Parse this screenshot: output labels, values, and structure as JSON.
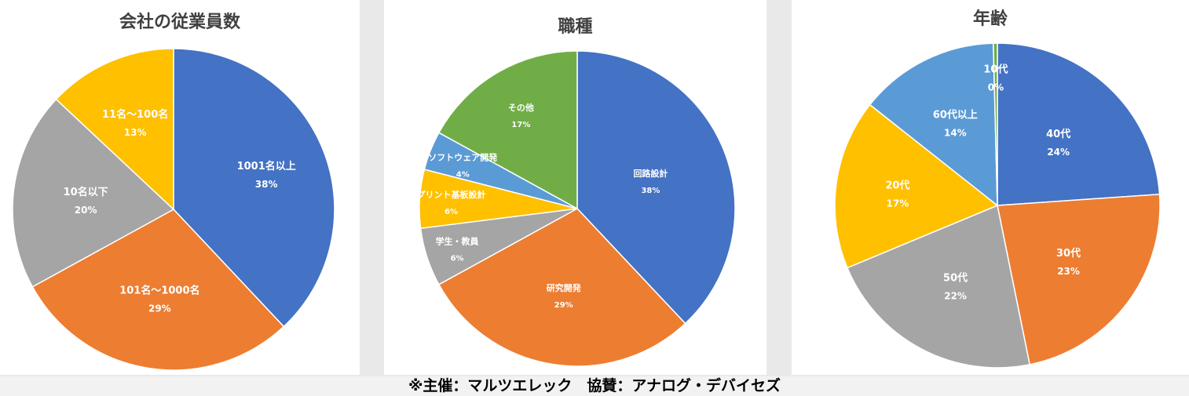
{
  "chart_data": [
    {
      "type": "pie",
      "title": "会社の従業員数",
      "colors": [
        "#4472c4",
        "#ed7d31",
        "#a5a5a5",
        "#ffc000"
      ],
      "slices": [
        {
          "label": "1001名以上",
          "pct_label": "38%",
          "value": 38
        },
        {
          "label": "101名～1000名",
          "pct_label": "29%",
          "value": 29
        },
        {
          "label": "10名以下",
          "pct_label": "20%",
          "value": 20
        },
        {
          "label": "11名～100名",
          "pct_label": "13%",
          "value": 13
        }
      ]
    },
    {
      "type": "pie",
      "title": "職種",
      "colors": [
        "#4472c4",
        "#ed7d31",
        "#a5a5a5",
        "#ffc000",
        "#5b9bd5",
        "#70ad47"
      ],
      "slices": [
        {
          "label": "回路設計",
          "pct_label": "38%",
          "value": 38
        },
        {
          "label": "研究開発",
          "pct_label": "29%",
          "value": 29
        },
        {
          "label": "学生・教員",
          "pct_label": "6%",
          "value": 6
        },
        {
          "label": "プリント基板設計",
          "pct_label": "6%",
          "value": 6
        },
        {
          "label": "ソフトウェア開発",
          "pct_label": "4%",
          "value": 4
        },
        {
          "label": "その他",
          "pct_label": "17%",
          "value": 17
        }
      ]
    },
    {
      "type": "pie",
      "title": "年齢",
      "colors": [
        "#4472c4",
        "#ed7d31",
        "#a5a5a5",
        "#ffc000",
        "#5b9bd5",
        "#70ad47"
      ],
      "slices": [
        {
          "label": "40代",
          "pct_label": "24%",
          "value": 24
        },
        {
          "label": "30代",
          "pct_label": "23%",
          "value": 23
        },
        {
          "label": "50代",
          "pct_label": "22%",
          "value": 22
        },
        {
          "label": "20代",
          "pct_label": "17%",
          "value": 17
        },
        {
          "label": "60代以上",
          "pct_label": "14%",
          "value": 14
        },
        {
          "label": "10代",
          "pct_label": "0%",
          "value": 0.4
        }
      ]
    }
  ],
  "footer": {
    "text": "※主催：マルツエレック　協賛：アナログ・デバイセズ"
  }
}
